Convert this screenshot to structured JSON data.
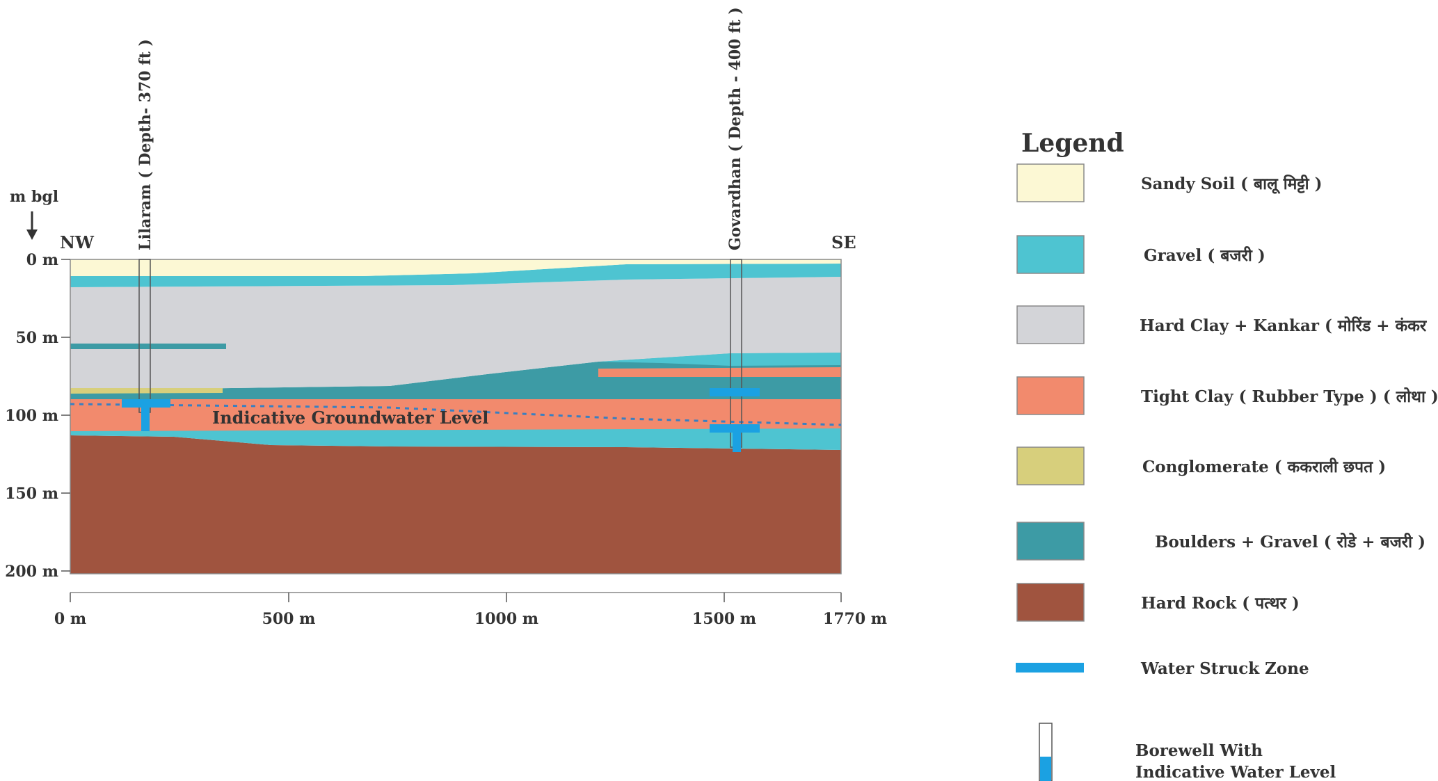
{
  "section": {
    "direction_left": "NW",
    "direction_right": "SE",
    "depth_unit": "m bgl",
    "depth_ticks": [
      "0 m",
      "50 m",
      "100 m",
      "150 m",
      "200 m"
    ],
    "distance_ticks": [
      "0 m",
      "500 m",
      "1000 m",
      "1500 m",
      "1770 m"
    ],
    "groundwater_label": "Indicative Groundwater Level",
    "boreholes": [
      {
        "name": "Lilaram ( Depth- 370 ft )"
      },
      {
        "name": "Govardhan ( Depth - 400 ft )"
      }
    ]
  },
  "legend": {
    "title": "Legend",
    "items": [
      {
        "label": "Sandy Soil ( बालू मिट्टी )",
        "color": "#fcf8d4",
        "kind": "swatch"
      },
      {
        "label": "Gravel ( बजरी )",
        "color": "#4ec4d1",
        "kind": "swatch"
      },
      {
        "label": "Hard Clay + Kankar ( मोरिंड + कंकर",
        "color": "#d3d4d8",
        "kind": "swatch"
      },
      {
        "label": "Tight Clay ( Rubber Type ) ( लोथा )",
        "color": "#f28a6d",
        "kind": "swatch"
      },
      {
        "label": "Conglomerate ( ककराली छपत )",
        "color": "#d7cf7c",
        "kind": "swatch"
      },
      {
        "label": "Boulders + Gravel ( रोडे + बजरी )",
        "color": "#3d9ba5",
        "kind": "swatch"
      },
      {
        "label": "Hard Rock ( पत्थर )",
        "color": "#a0543f",
        "kind": "swatch"
      },
      {
        "label": "Water Struck Zone",
        "color": "#1ba1e2",
        "kind": "bar"
      }
    ],
    "borewell_line1": "Borewell With",
    "borewell_line2": "Indicative Water Level"
  }
}
